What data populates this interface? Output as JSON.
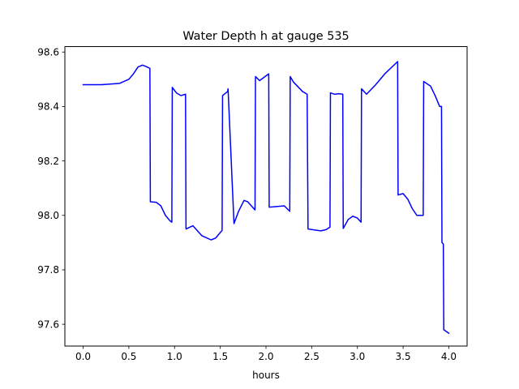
{
  "chart_data": {
    "type": "line",
    "title": "Water Depth h at gauge 535",
    "xlabel": "hours",
    "ylabel": "",
    "xlim": [
      -0.2,
      4.2
    ],
    "ylim": [
      97.52,
      98.62
    ],
    "xticks": [
      0.0,
      0.5,
      1.0,
      1.5,
      2.0,
      2.5,
      3.0,
      3.5,
      4.0
    ],
    "xtick_labels": [
      "0.0",
      "0.5",
      "1.0",
      "1.5",
      "2.0",
      "2.5",
      "3.0",
      "3.5",
      "4.0"
    ],
    "yticks": [
      97.6,
      97.8,
      98.0,
      98.2,
      98.4,
      98.6
    ],
    "ytick_labels": [
      "97.6",
      "97.8",
      "98.0",
      "98.2",
      "98.4",
      "98.6"
    ],
    "grid": false,
    "series": [
      {
        "color": "#0000ff",
        "x": [
          0.0,
          0.2,
          0.4,
          0.5,
          0.55,
          0.6,
          0.65,
          0.7,
          0.73,
          0.735,
          0.8,
          0.85,
          0.9,
          0.95,
          0.97,
          0.975,
          1.02,
          1.07,
          1.12,
          1.125,
          1.2,
          1.3,
          1.4,
          1.45,
          1.52,
          1.525,
          1.58,
          1.585,
          1.65,
          1.7,
          1.76,
          1.8,
          1.88,
          1.885,
          1.93,
          1.97,
          2.03,
          2.035,
          2.1,
          2.2,
          2.26,
          2.265,
          2.3,
          2.4,
          2.45,
          2.46,
          2.6,
          2.66,
          2.7,
          2.705,
          2.75,
          2.8,
          2.84,
          2.845,
          2.9,
          2.95,
          3.0,
          3.04,
          3.045,
          3.1,
          3.2,
          3.3,
          3.44,
          3.445,
          3.5,
          3.55,
          3.6,
          3.65,
          3.72,
          3.725,
          3.8,
          3.85,
          3.9,
          3.92,
          3.925,
          3.94,
          3.945,
          4.0
        ],
        "y": [
          98.48,
          98.48,
          98.485,
          98.5,
          98.52,
          98.545,
          98.552,
          98.545,
          98.54,
          98.05,
          98.048,
          98.035,
          98.0,
          97.98,
          97.975,
          98.47,
          98.45,
          98.44,
          98.445,
          97.95,
          97.962,
          97.925,
          97.91,
          97.917,
          97.945,
          98.44,
          98.455,
          98.465,
          97.97,
          98.015,
          98.055,
          98.05,
          98.02,
          98.51,
          98.495,
          98.505,
          98.52,
          98.03,
          98.032,
          98.035,
          98.015,
          98.51,
          98.49,
          98.455,
          98.445,
          97.95,
          97.943,
          97.948,
          97.957,
          98.45,
          98.445,
          98.447,
          98.445,
          97.952,
          97.985,
          97.997,
          97.99,
          97.975,
          98.465,
          98.445,
          98.48,
          98.52,
          98.565,
          98.075,
          98.08,
          98.06,
          98.025,
          98.0,
          98.0,
          98.492,
          98.475,
          98.44,
          98.4,
          98.4,
          97.9,
          97.895,
          97.58,
          97.567
        ]
      }
    ]
  }
}
